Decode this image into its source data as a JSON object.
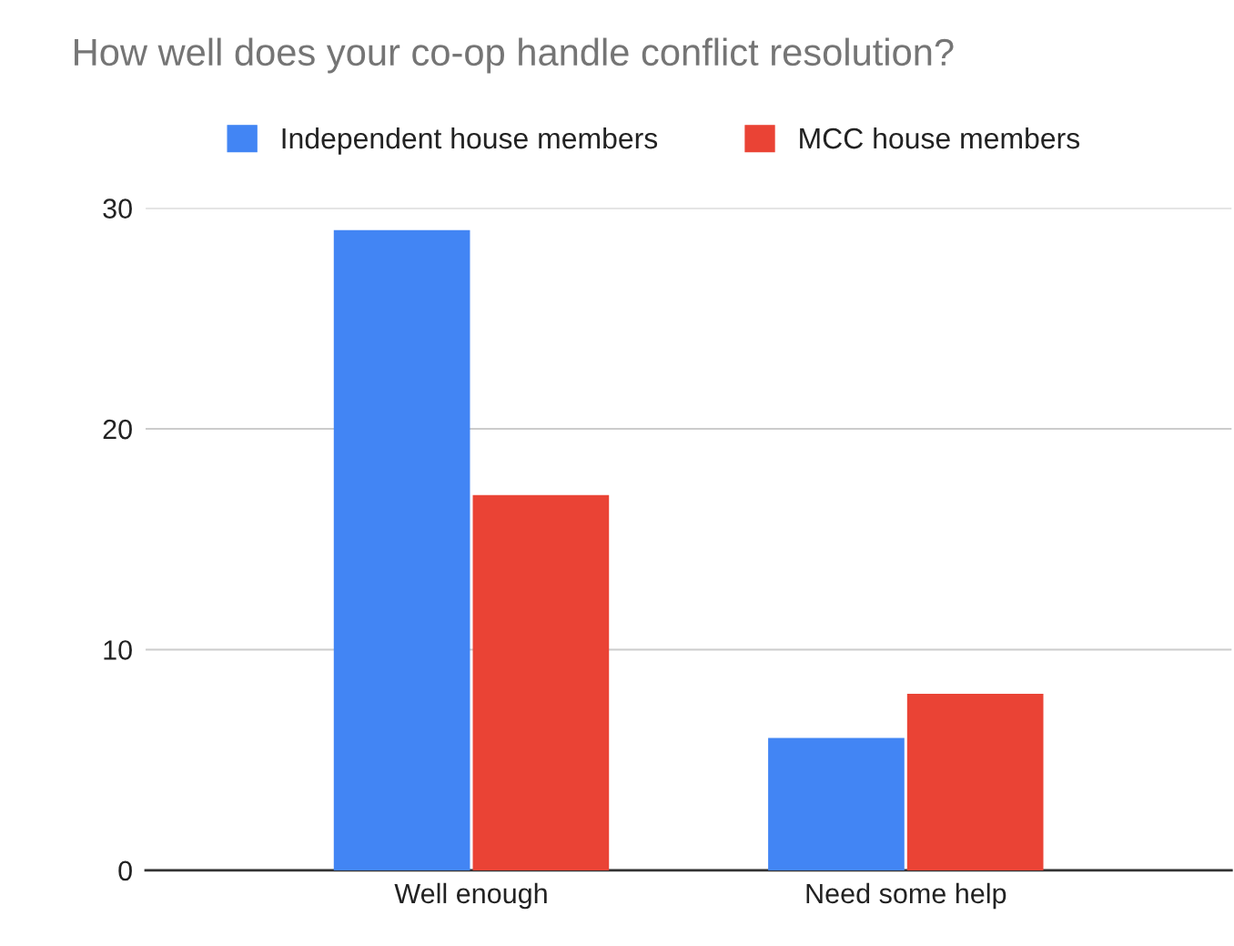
{
  "chart_data": {
    "type": "bar",
    "title": "How well does your co-op handle conflict resolution?",
    "categories": [
      "Well enough",
      "Need some help"
    ],
    "series": [
      {
        "name": "Independent house members",
        "color": "#4285f4",
        "values": [
          29,
          6
        ]
      },
      {
        "name": "MCC house members",
        "color": "#ea4335",
        "values": [
          17,
          8
        ]
      }
    ],
    "ylim": [
      0,
      30
    ],
    "yticks": [
      0,
      10,
      20,
      30
    ],
    "grid": "y",
    "legend": "top"
  }
}
